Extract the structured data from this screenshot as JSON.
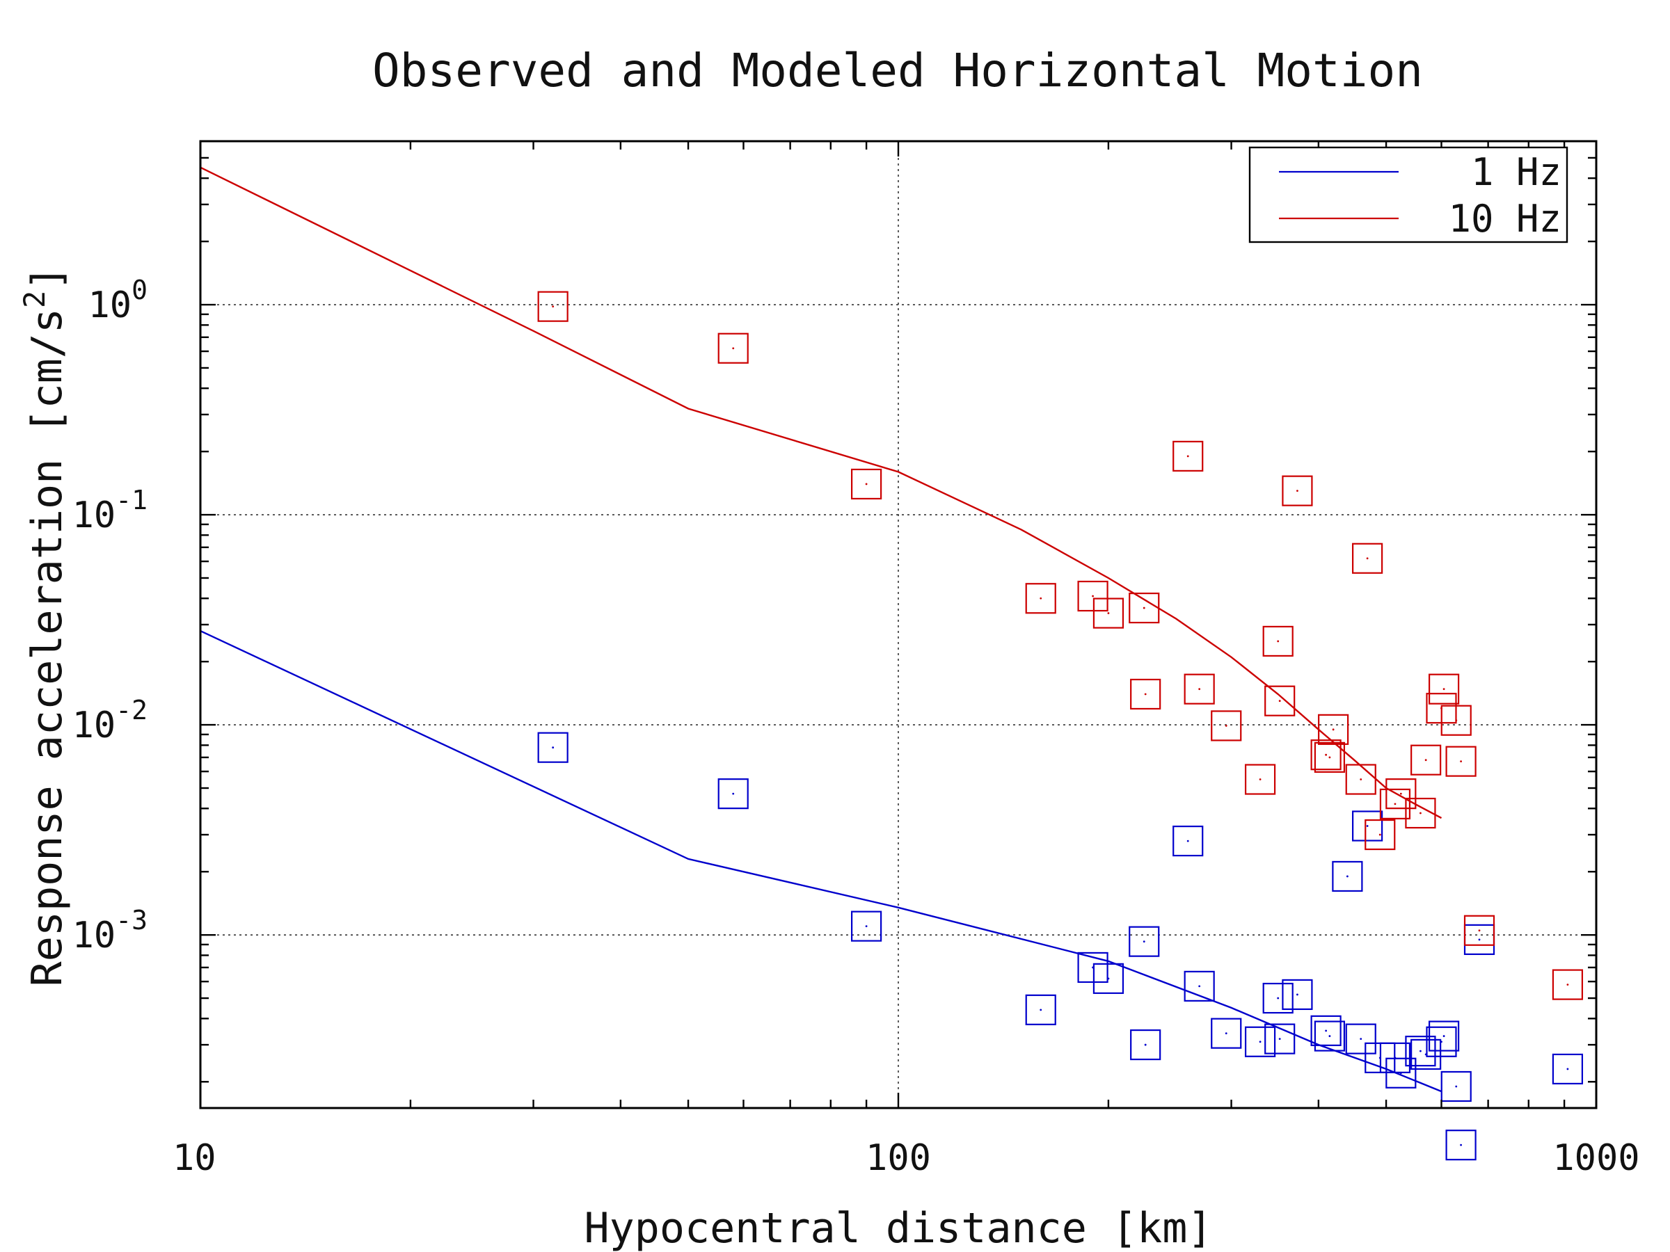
{
  "chart_data": {
    "type": "scatter",
    "title": "Observed and Modeled Horizontal Motion",
    "xlabel": "Hypocentral distance [km]",
    "ylabel_text": "Response acceleration [cm/s",
    "ylabel_superscript": "2",
    "ylabel_close": "]",
    "x_scale": "log",
    "y_scale": "log",
    "xlim": [
      10,
      1000
    ],
    "ylim": [
      0.00015,
      6
    ],
    "x_ticks": [
      {
        "value": 10,
        "label": "10"
      },
      {
        "value": 100,
        "label": "100"
      },
      {
        "value": 1000,
        "label": "1000"
      }
    ],
    "y_ticks": [
      {
        "value": 1,
        "base": "10",
        "exp": "0"
      },
      {
        "value": 0.1,
        "base": "10",
        "exp": "-1"
      },
      {
        "value": 0.01,
        "base": "10",
        "exp": "-2"
      },
      {
        "value": 0.001,
        "base": "10",
        "exp": "-3"
      }
    ],
    "grid": true,
    "legend_position": "top-right",
    "series": [
      {
        "name": "1 Hz",
        "color": "#0000cc",
        "line_x": [
          10,
          50,
          100,
          200,
          300,
          400,
          500,
          600
        ],
        "line_y": [
          0.028,
          0.0023,
          0.00135,
          0.00075,
          0.00045,
          0.0003,
          0.00023,
          0.00018
        ],
        "points_x": [
          32,
          58,
          90,
          160,
          190,
          200,
          225,
          226,
          260,
          270,
          295,
          330,
          350,
          352,
          373,
          410,
          415,
          440,
          460,
          470,
          490,
          515,
          525,
          560,
          570,
          600,
          605,
          630,
          640,
          680,
          910
        ],
        "points_y": [
          0.0078,
          0.0047,
          0.0011,
          0.00044,
          0.0007,
          0.00062,
          0.00093,
          0.0003,
          0.0028,
          0.00057,
          0.00034,
          0.00031,
          0.0005,
          0.00032,
          0.00052,
          0.00035,
          0.00033,
          0.0019,
          0.00032,
          0.0033,
          0.00026,
          0.00026,
          0.00022,
          0.00028,
          0.00027,
          0.00031,
          0.00033,
          0.00019,
          0.0001,
          0.00095,
          0.00023
        ]
      },
      {
        "name": "10 Hz",
        "color": "#cc0000",
        "line_x": [
          10,
          30,
          50,
          100,
          150,
          200,
          250,
          300,
          350,
          400,
          450,
          500,
          550,
          600
        ],
        "line_y": [
          4.5,
          0.75,
          0.32,
          0.16,
          0.085,
          0.05,
          0.032,
          0.021,
          0.014,
          0.0095,
          0.0068,
          0.005,
          0.0042,
          0.0036
        ],
        "points_x": [
          32,
          58,
          90,
          160,
          190,
          200,
          225,
          226,
          260,
          270,
          295,
          330,
          350,
          352,
          373,
          410,
          415,
          420,
          460,
          470,
          490,
          515,
          525,
          560,
          570,
          600,
          605,
          630,
          640,
          680,
          910
        ],
        "points_y": [
          0.98,
          0.62,
          0.14,
          0.04,
          0.041,
          0.034,
          0.036,
          0.014,
          0.19,
          0.0148,
          0.0099,
          0.0055,
          0.025,
          0.013,
          0.13,
          0.0072,
          0.007,
          0.0095,
          0.0055,
          0.062,
          0.003,
          0.0042,
          0.0047,
          0.0038,
          0.0068,
          0.012,
          0.0148,
          0.0105,
          0.0067,
          0.00105,
          0.00058
        ]
      }
    ]
  }
}
